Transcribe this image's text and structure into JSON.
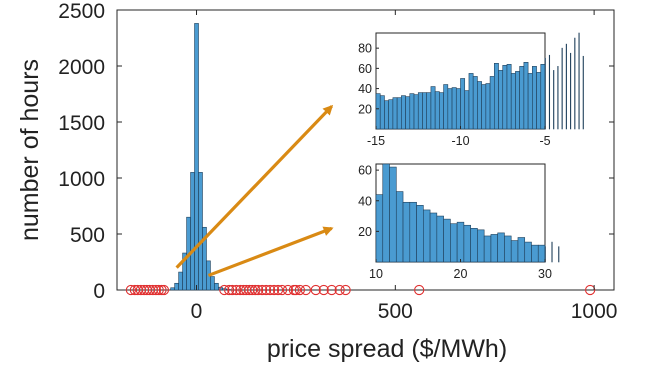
{
  "chart_data": [
    {
      "type": "bar",
      "panel": "main",
      "xlabel": "price spread ($/MWh)",
      "ylabel": "number of hours",
      "xlim": [
        -200,
        1050
      ],
      "ylim": [
        0,
        2500
      ],
      "xticks": [
        0,
        500,
        1000
      ],
      "yticks": [
        0,
        500,
        1000,
        1500,
        2000,
        2500
      ],
      "bin_width": 10,
      "bins": [
        -60,
        -50,
        -40,
        -30,
        -20,
        -10,
        0,
        10,
        20,
        30,
        40,
        50,
        60,
        70,
        80
      ],
      "values": [
        20,
        60,
        160,
        330,
        650,
        1050,
        2380,
        1050,
        560,
        260,
        120,
        60,
        25,
        12,
        5
      ],
      "outlier_markers": {
        "style": "red open circles on the x-axis",
        "x": [
          -165,
          -155,
          -148,
          -140,
          -132,
          -125,
          -118,
          -110,
          -102,
          -95,
          -88,
          -82,
          70,
          82,
          90,
          100,
          110,
          118,
          125,
          133,
          140,
          148,
          155,
          165,
          175,
          185,
          195,
          205,
          215,
          230,
          245,
          250,
          260,
          275,
          300,
          320,
          340,
          360,
          375,
          560,
          990
        ]
      },
      "arrows": [
        {
          "from": [
            -50,
            200
          ],
          "to": [
            340,
            1640
          ],
          "target": "inset-top"
        },
        {
          "from": [
            30,
            130
          ],
          "to": [
            340,
            550
          ],
          "target": "inset-bottom"
        }
      ],
      "colors": {
        "bar": "#4a9bd1",
        "bar_edge": "#1f3f5a",
        "outlier": "#e03030",
        "arrow": "#d98a14"
      }
    },
    {
      "type": "bar",
      "panel": "inset-top",
      "xlim": [
        -15,
        -5
      ],
      "ylim": [
        0,
        95
      ],
      "xticks": [
        -15,
        -10,
        -5
      ],
      "yticks": [
        20,
        40,
        60,
        80
      ],
      "bin_width": 0.25,
      "values": [
        35,
        33,
        28,
        29,
        31,
        31,
        33,
        32,
        35,
        34,
        36,
        36,
        36,
        42,
        37,
        36,
        44,
        40,
        41,
        40,
        50,
        38,
        55,
        52,
        47,
        44,
        45,
        52,
        65,
        58,
        63,
        64,
        55,
        57,
        62,
        66,
        55,
        62,
        56,
        64,
        70,
        73,
        58,
        62,
        80,
        84,
        75,
        90,
        96,
        72
      ]
    },
    {
      "type": "bar",
      "panel": "inset-bottom",
      "xlim": [
        10,
        30
      ],
      "ylim": [
        0,
        64
      ],
      "xticks": [
        10,
        20,
        30
      ],
      "yticks": [
        20,
        40,
        60
      ],
      "bin_width": 0.8,
      "values": [
        44,
        64,
        62,
        46,
        39,
        39,
        37,
        34,
        32,
        30,
        28,
        25,
        26,
        24,
        22,
        21,
        17,
        18,
        19,
        17,
        14,
        16,
        13,
        11,
        11,
        10,
        13,
        10
      ]
    }
  ]
}
